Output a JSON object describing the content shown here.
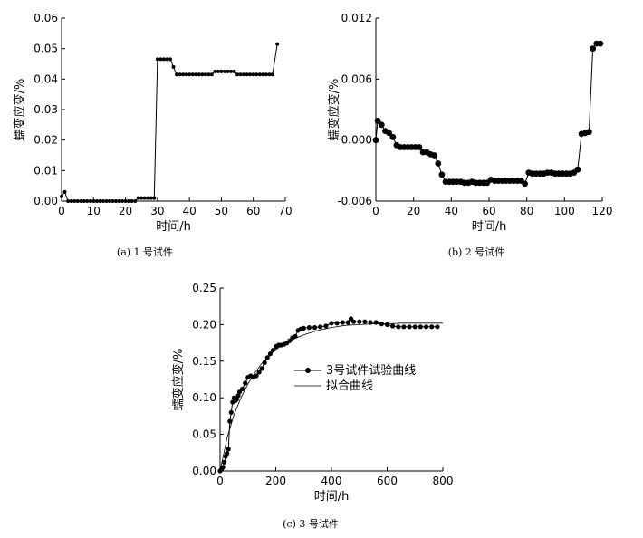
{
  "figure": {
    "captions": [
      "(a) 1 号试件",
      "(b) 2 号试件",
      "(c) 3 号试件"
    ]
  },
  "chart_data": [
    {
      "type": "line",
      "caption": "(a) 1 号试件",
      "xlabel": "时间/h",
      "ylabel": "蠕变应变/%",
      "xlim": [
        0,
        70
      ],
      "ylim": [
        0,
        0.06
      ],
      "xticks": [
        "0",
        "10",
        "20",
        "30",
        "40",
        "50",
        "60",
        "70"
      ],
      "yticks": [
        "0.00",
        "0.01",
        "0.02",
        "0.03",
        "0.04",
        "0.05",
        "0.06"
      ],
      "grid": false,
      "series": [
        {
          "marker": "dot",
          "x": [
            0,
            1,
            2,
            3,
            4,
            5,
            6,
            7,
            8,
            9,
            10,
            11,
            12,
            13,
            14,
            15,
            16,
            17,
            18,
            19,
            20,
            21,
            22,
            23,
            24,
            25,
            26,
            27,
            28,
            29,
            30,
            31,
            32,
            33,
            34,
            35,
            36,
            37,
            38,
            39,
            40,
            41,
            42,
            43,
            44,
            45,
            46,
            47,
            48,
            49,
            50,
            51,
            52,
            53,
            54,
            55,
            56,
            57,
            58,
            59,
            60,
            61,
            62,
            63,
            64,
            65,
            66,
            67.5
          ],
          "y": [
            0.0015,
            0.003,
            0,
            0,
            0,
            0,
            0,
            0,
            0,
            0,
            0,
            0,
            0,
            0,
            0,
            0,
            0,
            0,
            0,
            0,
            0,
            0,
            0,
            0,
            0.001,
            0.001,
            0.001,
            0.001,
            0.001,
            0.001,
            0.0465,
            0.0465,
            0.0465,
            0.0465,
            0.0465,
            0.044,
            0.0415,
            0.0415,
            0.0415,
            0.0415,
            0.0415,
            0.0415,
            0.0415,
            0.0415,
            0.0415,
            0.0415,
            0.0415,
            0.0415,
            0.0425,
            0.0425,
            0.0425,
            0.0425,
            0.0425,
            0.0425,
            0.0425,
            0.0415,
            0.0415,
            0.0415,
            0.0415,
            0.0415,
            0.0415,
            0.0415,
            0.0415,
            0.0415,
            0.0415,
            0.0415,
            0.0415,
            0.0515
          ]
        }
      ]
    },
    {
      "type": "line",
      "caption": "(b) 2 号试件",
      "xlabel": "时间/h",
      "ylabel": "蠕变应变/%",
      "xlim": [
        0,
        120
      ],
      "ylim": [
        -0.006,
        0.012
      ],
      "xticks": [
        "0",
        "20",
        "40",
        "60",
        "80",
        "100",
        "120"
      ],
      "yticks": [
        "-0.006",
        "0.000",
        "0.006",
        "0.012"
      ],
      "grid": false,
      "series": [
        {
          "marker": "dot-large",
          "x": [
            0,
            1,
            3,
            5,
            7,
            9,
            11,
            13,
            15,
            17,
            19,
            21,
            23,
            25,
            27,
            29,
            31,
            33,
            35,
            37,
            39,
            41,
            43,
            45,
            47,
            49,
            51,
            53,
            55,
            57,
            59,
            61,
            63,
            65,
            67,
            69,
            71,
            73,
            75,
            77,
            79,
            81,
            83,
            85,
            87,
            89,
            91,
            93,
            95,
            97,
            99,
            101,
            103,
            105,
            107,
            109,
            111,
            113,
            115,
            117,
            119
          ],
          "y": [
            0.0,
            0.0019,
            0.0015,
            0.0009,
            0.0007,
            0.0003,
            -0.0005,
            -0.0007,
            -0.0007,
            -0.0007,
            -0.0007,
            -0.0007,
            -0.0007,
            -0.0012,
            -0.0012,
            -0.0014,
            -0.0015,
            -0.0023,
            -0.0034,
            -0.0041,
            -0.0041,
            -0.0041,
            -0.0041,
            -0.0041,
            -0.0042,
            -0.0042,
            -0.0041,
            -0.0042,
            -0.0042,
            -0.0042,
            -0.0042,
            -0.0039,
            -0.004,
            -0.004,
            -0.004,
            -0.004,
            -0.004,
            -0.004,
            -0.004,
            -0.004,
            -0.0043,
            -0.0032,
            -0.0033,
            -0.0033,
            -0.0033,
            -0.0033,
            -0.0032,
            -0.0032,
            -0.0033,
            -0.0033,
            -0.0033,
            -0.0033,
            -0.0033,
            -0.0032,
            -0.0029,
            0.0006,
            0.0007,
            0.0008,
            0.009,
            0.0095,
            0.0095
          ]
        }
      ]
    },
    {
      "type": "line",
      "caption": "(c) 3 号试件",
      "xlabel": "时间/h",
      "ylabel": "蠕变应变/%",
      "xlim": [
        0,
        800
      ],
      "ylim": [
        0,
        0.25
      ],
      "xticks": [
        "0",
        "200",
        "400",
        "600",
        "800"
      ],
      "yticks": [
        "0.00",
        "0.05",
        "0.10",
        "0.15",
        "0.20",
        "0.25"
      ],
      "grid": false,
      "legend": "center-right",
      "series": [
        {
          "name": "3号试件试验曲线",
          "marker": "dot",
          "x": [
            0,
            5,
            10,
            15,
            20,
            25,
            30,
            35,
            40,
            45,
            50,
            55,
            60,
            65,
            70,
            80,
            90,
            100,
            110,
            120,
            130,
            140,
            150,
            160,
            170,
            180,
            190,
            200,
            210,
            220,
            230,
            240,
            250,
            260,
            270,
            280,
            290,
            300,
            320,
            340,
            360,
            380,
            400,
            420,
            440,
            460,
            470,
            480,
            500,
            520,
            540,
            560,
            580,
            600,
            620,
            640,
            660,
            680,
            700,
            720,
            740,
            760,
            780
          ],
          "y": [
            0,
            0.002,
            0.005,
            0.012,
            0.02,
            0.024,
            0.03,
            0.068,
            0.08,
            0.094,
            0.1,
            0.096,
            0.098,
            0.103,
            0.108,
            0.112,
            0.12,
            0.128,
            0.13,
            0.128,
            0.13,
            0.135,
            0.14,
            0.148,
            0.155,
            0.16,
            0.165,
            0.17,
            0.172,
            0.172,
            0.173,
            0.175,
            0.178,
            0.182,
            0.184,
            0.192,
            0.194,
            0.195,
            0.196,
            0.196,
            0.197,
            0.198,
            0.202,
            0.202,
            0.203,
            0.203,
            0.208,
            0.204,
            0.204,
            0.204,
            0.203,
            0.203,
            0.201,
            0.2,
            0.198,
            0.197,
            0.197,
            0.197,
            0.197,
            0.197,
            0.197,
            0.197,
            0.197
          ]
        },
        {
          "name": "拟合曲线",
          "marker": "none",
          "x": [
            0,
            25,
            50,
            75,
            100,
            125,
            150,
            175,
            200,
            250,
            300,
            350,
            400,
            450,
            500,
            550,
            600,
            650,
            700,
            750,
            800
          ],
          "y": [
            0,
            0.045,
            0.077,
            0.1,
            0.119,
            0.134,
            0.147,
            0.157,
            0.166,
            0.178,
            0.186,
            0.192,
            0.196,
            0.199,
            0.2,
            0.201,
            0.201,
            0.202,
            0.202,
            0.202,
            0.202
          ]
        }
      ]
    }
  ]
}
